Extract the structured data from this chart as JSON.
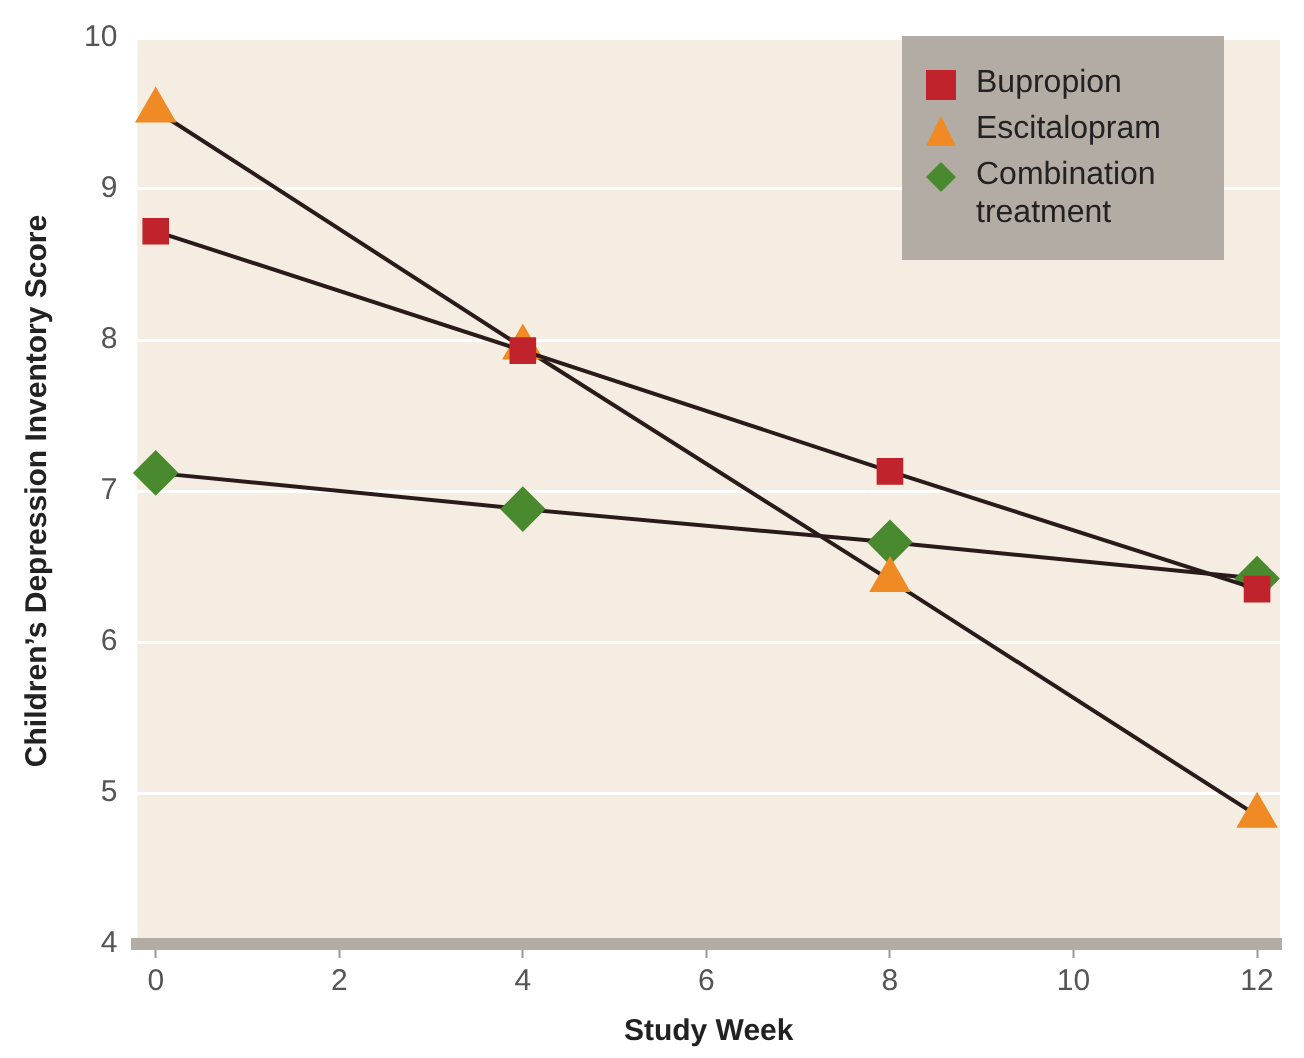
{
  "chart_data": {
    "type": "line",
    "xlabel": "Study Week",
    "ylabel": "Children’s Depression Inventory Score",
    "x": [
      0,
      4,
      8,
      12
    ],
    "xlim": [
      -0.2,
      12.25
    ],
    "xticks": [
      0,
      2,
      4,
      6,
      8,
      10,
      12
    ],
    "ylim": [
      4,
      10
    ],
    "yticks": [
      4,
      5,
      6,
      7,
      8,
      9,
      10
    ],
    "grid": "y",
    "legend": "top right",
    "series": [
      {
        "name": "Bupropion",
        "color": "#c0232b",
        "marker": "square",
        "values": [
          8.72,
          7.93,
          7.13,
          6.35
        ]
      },
      {
        "name": "Escitalopram",
        "color": "#ef8a24",
        "marker": "triangle",
        "values": [
          9.52,
          7.95,
          6.41,
          4.85
        ]
      },
      {
        "name": "Combination treatment",
        "color": "#4a8a2e",
        "marker": "diamond",
        "values": [
          7.12,
          6.88,
          6.66,
          6.42
        ]
      }
    ]
  }
}
